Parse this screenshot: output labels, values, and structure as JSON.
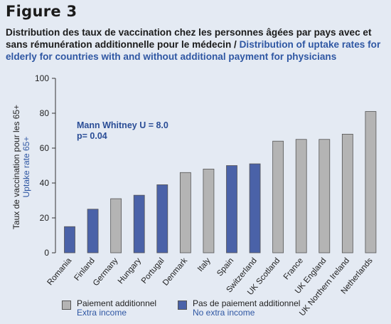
{
  "figure_label": "Figure 3",
  "subtitle_fr": "Distribution des taux de vaccination chez les personnes âgées par pays avec et sans rémunération additionnelle pour le médecin / ",
  "subtitle_en": "Distribution of uptake rates for elderly for countries with and without additional payment for physicians",
  "colors": {
    "background": "#e4eaf3",
    "extra_income": "#b4b4b4",
    "no_extra_income": "#4a62a8",
    "english_text": "#2f57a3",
    "axis": "#333333"
  },
  "legend": [
    {
      "label_fr": "Paiement additionnel",
      "label_en": "Extra income",
      "color": "#b4b4b4"
    },
    {
      "label_fr": "Pas de paiement additionnel",
      "label_en": "No extra income",
      "color": "#4a62a8"
    }
  ],
  "chart_data": {
    "type": "bar",
    "ylabel_fr": "Taux de vaccination pour les 65+",
    "ylabel_en": "Uptake rate 65+",
    "ylim": [
      0,
      100
    ],
    "yticks": [
      0,
      20,
      40,
      60,
      80,
      100
    ],
    "grid": false,
    "annotation": [
      "Mann Whitney U = 8.0",
      "p= 0.04"
    ],
    "categories": [
      "Romania",
      "Finland",
      "Germany",
      "Hungary",
      "Portugal",
      "Denmark",
      "Italy",
      "Spain",
      "Switzerland",
      "UK Scotland",
      "France",
      "UK England",
      "UK Northern Ireland",
      "Netherlands"
    ],
    "values": [
      15,
      25,
      31,
      33,
      39,
      46,
      48,
      50,
      51,
      64,
      65,
      65,
      68,
      81
    ],
    "groups": [
      "no_extra_income",
      "no_extra_income",
      "extra_income",
      "no_extra_income",
      "no_extra_income",
      "extra_income",
      "extra_income",
      "no_extra_income",
      "no_extra_income",
      "extra_income",
      "extra_income",
      "extra_income",
      "extra_income",
      "extra_income"
    ]
  }
}
